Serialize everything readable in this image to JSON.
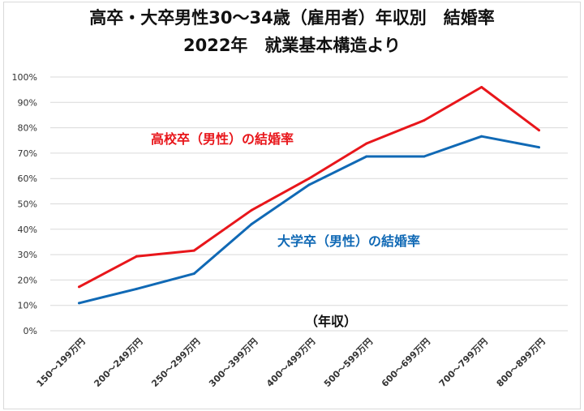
{
  "chart_data": {
    "type": "line",
    "title": "高卒・大卒男性30～34歳（雇用者）年収別　結婚率",
    "subtitle": "2022年　就業基本構造より",
    "xlabel": "（年収）",
    "ylabel": "",
    "categories": [
      "150～199万円",
      "200～249万円",
      "250～299万円",
      "300～399万円",
      "400～499万円",
      "500～599万円",
      "600～699万円",
      "700～799万円",
      "800～899万円"
    ],
    "ylim": [
      0,
      100
    ],
    "yticks": [
      "0%",
      "10%",
      "20%",
      "30%",
      "40%",
      "50%",
      "60%",
      "70%",
      "80%",
      "90%",
      "100%"
    ],
    "grid": true,
    "series": [
      {
        "name": "高校卒（男性）の結婚率",
        "color": "#e8161b",
        "values": [
          17.3,
          29.3,
          31.6,
          47.5,
          60.0,
          73.8,
          82.9,
          96.0,
          79.0
        ]
      },
      {
        "name": "大学卒（男性）の結婚率",
        "color": "#1069b5",
        "values": [
          10.9,
          16.5,
          22.5,
          42.0,
          57.5,
          68.7,
          68.7,
          76.6,
          72.3
        ]
      }
    ]
  }
}
